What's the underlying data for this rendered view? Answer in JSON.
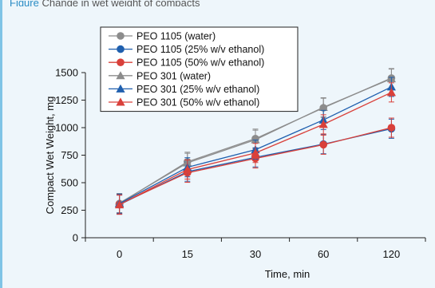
{
  "caption": {
    "prefix": "Figure",
    "text": "Change in wet weight of compacts"
  },
  "chart_data": {
    "type": "line",
    "title": "",
    "xlabel": "Time, min",
    "ylabel": "Compact Wet Weight, mg",
    "categories": [
      "0",
      "15",
      "30",
      "60",
      "120"
    ],
    "ylim": [
      0,
      1500
    ],
    "yticks": [
      0,
      250,
      500,
      750,
      1000,
      1250,
      1500
    ],
    "grid": false,
    "legend_position": "top-left",
    "series": [
      {
        "name": "PEO 1105 (water)",
        "color": "#8c8c8c",
        "marker": "circle",
        "values": [
          310,
          690,
          900,
          1180,
          1450
        ]
      },
      {
        "name": "PEO 1105 (25% w/v ethanol)",
        "color": "#1f5fae",
        "marker": "circle",
        "values": [
          300,
          600,
          730,
          850,
          990
        ]
      },
      {
        "name": "PEO 1105 (50% w/v ethanol)",
        "color": "#d9403a",
        "marker": "circle",
        "values": [
          305,
          590,
          720,
          845,
          1000
        ]
      },
      {
        "name": "PEO 301 (water)",
        "color": "#8c8c8c",
        "marker": "triangle",
        "values": [
          315,
          680,
          890,
          1185,
          1445
        ]
      },
      {
        "name": "PEO 301 (25% w/v ethanol)",
        "color": "#1f5fae",
        "marker": "triangle",
        "values": [
          310,
          640,
          800,
          1070,
          1370
        ]
      },
      {
        "name": "PEO 301 (50% w/v ethanol)",
        "color": "#d9403a",
        "marker": "triangle",
        "values": [
          300,
          620,
          770,
          1030,
          1320
        ]
      }
    ]
  }
}
